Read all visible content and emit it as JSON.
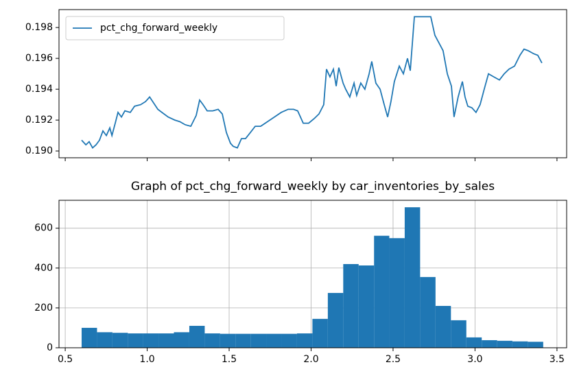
{
  "chart_data": [
    {
      "type": "line",
      "legend": "upper left",
      "x": [
        0.6,
        0.626,
        0.646,
        0.667,
        0.688,
        0.709,
        0.73,
        0.751,
        0.772,
        0.785,
        0.805,
        0.822,
        0.843,
        0.864,
        0.897,
        0.923,
        0.96,
        0.99,
        1.015,
        1.04,
        1.065,
        1.09,
        1.128,
        1.169,
        1.199,
        1.232,
        1.266,
        1.299,
        1.32,
        1.341,
        1.366,
        1.4,
        1.433,
        1.458,
        1.483,
        1.508,
        1.525,
        1.55,
        1.575,
        1.6,
        1.63,
        1.659,
        1.692,
        1.734,
        1.776,
        1.818,
        1.86,
        1.893,
        1.918,
        1.952,
        1.985,
        2.019,
        2.048,
        2.077,
        2.094,
        2.115,
        2.136,
        2.153,
        2.169,
        2.195,
        2.211,
        2.236,
        2.262,
        2.278,
        2.303,
        2.328,
        2.354,
        2.37,
        2.395,
        2.421,
        2.446,
        2.467,
        2.487,
        2.508,
        2.538,
        2.563,
        2.588,
        2.605,
        2.63,
        2.655,
        2.688,
        2.73,
        2.755,
        2.78,
        2.805,
        2.831,
        2.856,
        2.872,
        2.897,
        2.923,
        2.939,
        2.956,
        2.981,
        3.006,
        3.031,
        3.056,
        3.082,
        3.115,
        3.149,
        3.178,
        3.207,
        3.241,
        3.274,
        3.299,
        3.324,
        3.358,
        3.383,
        3.408
      ],
      "series": [
        {
          "name": "pct_chg_forward_weekly",
          "color": "#1f77b4",
          "values": [
            0.1907,
            0.1904,
            0.1906,
            0.1902,
            0.1904,
            0.1907,
            0.1913,
            0.191,
            0.1915,
            0.191,
            0.1918,
            0.1925,
            0.1922,
            0.1926,
            0.1925,
            0.1929,
            0.193,
            0.1932,
            0.1935,
            0.1931,
            0.1927,
            0.1925,
            0.1922,
            0.192,
            0.1919,
            0.1917,
            0.1916,
            0.1923,
            0.1933,
            0.193,
            0.1926,
            0.1926,
            0.1927,
            0.1924,
            0.1912,
            0.1905,
            0.1903,
            0.1902,
            0.1908,
            0.1908,
            0.1912,
            0.1916,
            0.1916,
            0.1919,
            0.1922,
            0.1925,
            0.1927,
            0.1927,
            0.1926,
            0.1918,
            0.1918,
            0.1921,
            0.1924,
            0.193,
            0.1953,
            0.1948,
            0.1953,
            0.1942,
            0.1954,
            0.1944,
            0.194,
            0.1935,
            0.1944,
            0.1936,
            0.1944,
            0.194,
            0.195,
            0.1958,
            0.1944,
            0.194,
            0.193,
            0.1922,
            0.1932,
            0.1945,
            0.1955,
            0.195,
            0.196,
            0.1952,
            0.1987,
            0.1987,
            0.1987,
            0.1987,
            0.1975,
            0.197,
            0.1965,
            0.195,
            0.1942,
            0.1922,
            0.1935,
            0.1945,
            0.1935,
            0.1929,
            0.1928,
            0.1925,
            0.193,
            0.194,
            0.195,
            0.1948,
            0.1946,
            0.195,
            0.1953,
            0.1955,
            0.1962,
            0.1966,
            0.1965,
            0.1963,
            0.1962,
            0.1957
          ]
        }
      ],
      "ylim": [
        0.18956,
        0.19916
      ],
      "yticks": [
        {
          "value": 0.19,
          "label": "0.190"
        },
        {
          "value": 0.192,
          "label": "0.192"
        },
        {
          "value": 0.194,
          "label": "0.194"
        },
        {
          "value": 0.196,
          "label": "0.196"
        },
        {
          "value": 0.198,
          "label": "0.198"
        }
      ],
      "xlim": [
        0.462,
        3.559
      ],
      "grid": false
    },
    {
      "type": "histogram",
      "title": "Graph of pct_chg_forward_weekly by car_inventories_by_sales",
      "color": "#1f77b4",
      "bins": [
        0.6,
        0.694,
        0.788,
        0.882,
        0.975,
        1.069,
        1.163,
        1.257,
        1.351,
        1.445,
        1.539,
        1.633,
        1.726,
        1.82,
        1.914,
        2.008,
        2.102,
        2.196,
        2.29,
        2.384,
        2.477,
        2.571,
        2.665,
        2.759,
        2.853,
        2.947,
        3.041,
        3.135,
        3.228,
        3.322,
        3.416
      ],
      "values": [
        100,
        78,
        75,
        72,
        72,
        72,
        78,
        110,
        72,
        70,
        70,
        70,
        70,
        70,
        72,
        145,
        275,
        420,
        413,
        562,
        550,
        705,
        355,
        210,
        138,
        52,
        38,
        35,
        32,
        30
      ],
      "xlim": [
        0.462,
        3.559
      ],
      "ylim": [
        0,
        740
      ],
      "xticks": [
        0.5,
        {
          "value": 1,
          "label": "1.0"
        },
        1.5,
        {
          "value": 2,
          "label": "2.0"
        },
        2.5,
        {
          "value": 3,
          "label": "3.0"
        },
        3.5
      ],
      "yticks": [
        0,
        200,
        400,
        600
      ],
      "grid": true
    }
  ]
}
